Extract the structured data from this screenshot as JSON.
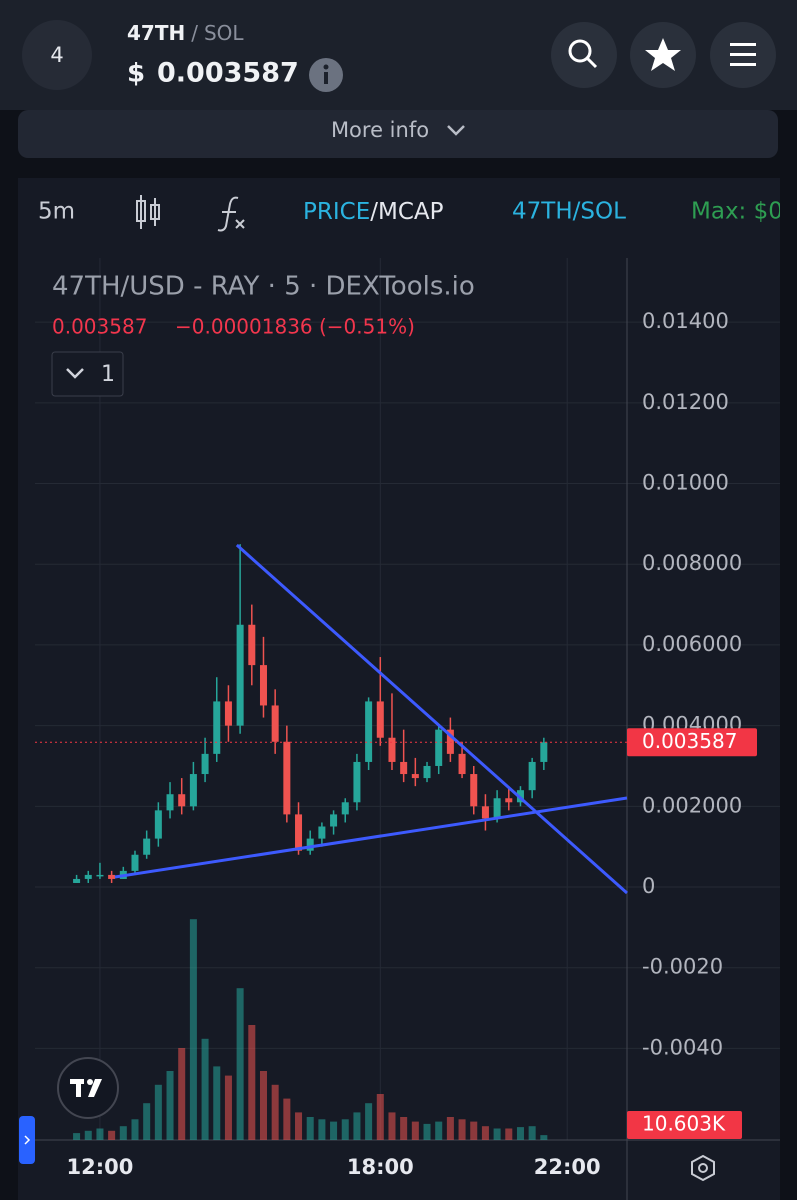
{
  "header": {
    "badge": "4",
    "base": "47TH",
    "separator": "/",
    "quote": "SOL",
    "currency": "$",
    "price": "0.003587",
    "more_info": "More info"
  },
  "toolbar": {
    "interval": "5m",
    "price": "PRICE",
    "mcap": "/MCAP",
    "pair": "47TH/SOL",
    "max": "Max: $0"
  },
  "chart_data": {
    "type": "candlestick",
    "title": "47TH/USD - RAY · 5 · DEXTools.io",
    "legend_close": "0.003587",
    "legend_change": "−0.00001836 (−0.51%)",
    "interval_badge": "1",
    "up_color": "#26a69a",
    "down_color": "#ef5350",
    "xlim": [
      10.61,
      23.28
    ],
    "xticks": [
      {
        "value": 12,
        "label": "12:00"
      },
      {
        "value": 18,
        "label": "18:00"
      },
      {
        "value": 22,
        "label": "22:00"
      }
    ],
    "ylim": [
      -0.00627,
      0.01559
    ],
    "yticks": [
      {
        "value": 0.014,
        "label": "0.01400"
      },
      {
        "value": 0.012,
        "label": "0.01200"
      },
      {
        "value": 0.01,
        "label": "0.01000"
      },
      {
        "value": 0.008,
        "label": "0.008000"
      },
      {
        "value": 0.006,
        "label": "0.006000"
      },
      {
        "value": 0.004,
        "label": "0.004000"
      },
      {
        "value": 0.002,
        "label": "0.002000"
      },
      0,
      {
        "value": -0.002,
        "label": "-0.0020"
      },
      {
        "value": -0.004,
        "label": "-0.0040"
      }
    ],
    "grid": true,
    "x": [
      11.5,
      11.75,
      12,
      12.25,
      12.5,
      12.75,
      13,
      13.25,
      13.5,
      13.75,
      14,
      14.25,
      14.5,
      14.75,
      15,
      15.25,
      15.5,
      15.75,
      16,
      16.25,
      16.5,
      16.75,
      17,
      17.25,
      17.5,
      17.75,
      18,
      18.25,
      18.5,
      18.75,
      19,
      19.25,
      19.5,
      19.75,
      20,
      20.25,
      20.5,
      20.75,
      21,
      21.25,
      21.5
    ],
    "open": [
      0.0001,
      0.0002,
      0.0003,
      0.0003,
      0.0002,
      0.0004,
      0.0008,
      0.0012,
      0.0019,
      0.0023,
      0.002,
      0.0028,
      0.0033,
      0.0046,
      0.004,
      0.0065,
      0.0055,
      0.0045,
      0.0036,
      0.0018,
      0.0009,
      0.0012,
      0.0015,
      0.0018,
      0.0021,
      0.0031,
      0.0046,
      0.0037,
      0.0031,
      0.0028,
      0.0027,
      0.003,
      0.0039,
      0.0033,
      0.0028,
      0.002,
      0.0017,
      0.0022,
      0.0021,
      0.0024,
      0.0031
    ],
    "high": [
      0.0003,
      0.0004,
      0.0006,
      0.0004,
      0.0005,
      0.0009,
      0.0014,
      0.0021,
      0.0026,
      0.0027,
      0.0031,
      0.0037,
      0.0052,
      0.005,
      0.0085,
      0.007,
      0.0062,
      0.0049,
      0.004,
      0.0021,
      0.0014,
      0.0016,
      0.0019,
      0.0022,
      0.0033,
      0.0047,
      0.0057,
      0.0048,
      0.0039,
      0.0032,
      0.0031,
      0.004,
      0.0042,
      0.0036,
      0.003,
      0.0023,
      0.0024,
      0.0025,
      0.0025,
      0.0032,
      0.0037
    ],
    "low": [
      0.0001,
      0.0001,
      0.0002,
      0.0001,
      0.0002,
      0.0003,
      0.0007,
      0.001,
      0.0017,
      0.0018,
      0.0019,
      0.0026,
      0.0031,
      0.0036,
      0.0038,
      0.005,
      0.0042,
      0.0033,
      0.0016,
      0.0008,
      0.0008,
      0.001,
      0.0013,
      0.0016,
      0.0019,
      0.0029,
      0.0035,
      0.0029,
      0.0026,
      0.0025,
      0.0026,
      0.0028,
      0.0031,
      0.0027,
      0.0018,
      0.0014,
      0.0016,
      0.0019,
      0.002,
      0.0022,
      0.0029
    ],
    "close": [
      0.0002,
      0.0003,
      0.0003,
      0.0002,
      0.0004,
      0.0008,
      0.0012,
      0.0019,
      0.0023,
      0.002,
      0.0028,
      0.0033,
      0.0046,
      0.004,
      0.0065,
      0.0055,
      0.0045,
      0.0036,
      0.0018,
      0.0009,
      0.0012,
      0.0015,
      0.0018,
      0.0021,
      0.0031,
      0.0046,
      0.0037,
      0.0031,
      0.0028,
      0.0027,
      0.003,
      0.0039,
      0.0033,
      0.0028,
      0.002,
      0.0017,
      0.0022,
      0.0021,
      0.0024,
      0.0031,
      0.003587
    ],
    "volume": {
      "values": [
        15,
        20,
        25,
        20,
        30,
        45,
        80,
        120,
        150,
        200,
        480,
        220,
        160,
        140,
        330,
        250,
        150,
        120,
        90,
        60,
        50,
        45,
        40,
        45,
        60,
        80,
        100,
        60,
        50,
        40,
        35,
        40,
        50,
        45,
        40,
        30,
        25,
        25,
        28,
        30,
        10.603
      ],
      "lim": [
        0,
        500
      ],
      "last_label": "10.603K"
    },
    "last_price": {
      "value": 0.003587,
      "label": "0.003587"
    },
    "trendlines": [
      {
        "color": "#3d5afe",
        "x": [
          14.93,
          23.28
        ],
        "y": [
          0.008476,
          -0.000149
        ]
      },
      {
        "color": "#3d5afe",
        "x": [
          12.32,
          23.28
        ],
        "y": [
          0.000248,
          0.002206
        ]
      }
    ]
  }
}
